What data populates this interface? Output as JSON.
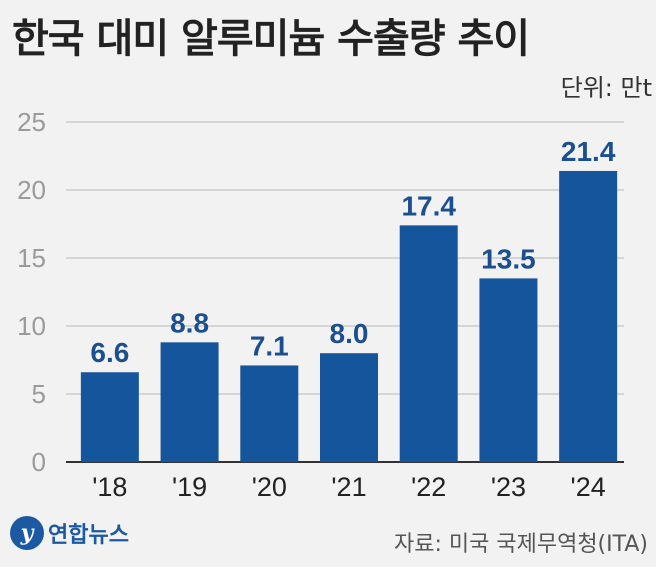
{
  "title": "한국 대미 알루미늄 수출량 추이",
  "unit_label": "단위: 만t",
  "source": "자료: 미국 국제무역청(ITA)",
  "logo": {
    "name": "연합뉴스",
    "icon": "yonhap-logo-icon"
  },
  "colors": {
    "bar": "#15559c",
    "value_label": "#1b4f8f",
    "grid": "#b8b8b8",
    "axis_text": "#9a9a9a",
    "category_text": "#222222"
  },
  "chart_data": {
    "type": "bar",
    "title": "한국 대미 알루미늄 수출량 추이",
    "xlabel": "",
    "ylabel": "",
    "categories": [
      "'18",
      "'19",
      "'20",
      "'21",
      "'22",
      "'23",
      "'24"
    ],
    "values": [
      6.6,
      8.8,
      7.1,
      8.0,
      17.4,
      13.5,
      21.4
    ],
    "value_labels": [
      "6.6",
      "8.8",
      "7.1",
      "8.0",
      "17.4",
      "13.5",
      "21.4"
    ],
    "yticks": [
      "0",
      "5",
      "10",
      "15",
      "20",
      "25"
    ],
    "ylim": [
      0,
      25
    ],
    "grid": true,
    "legend": "none"
  }
}
